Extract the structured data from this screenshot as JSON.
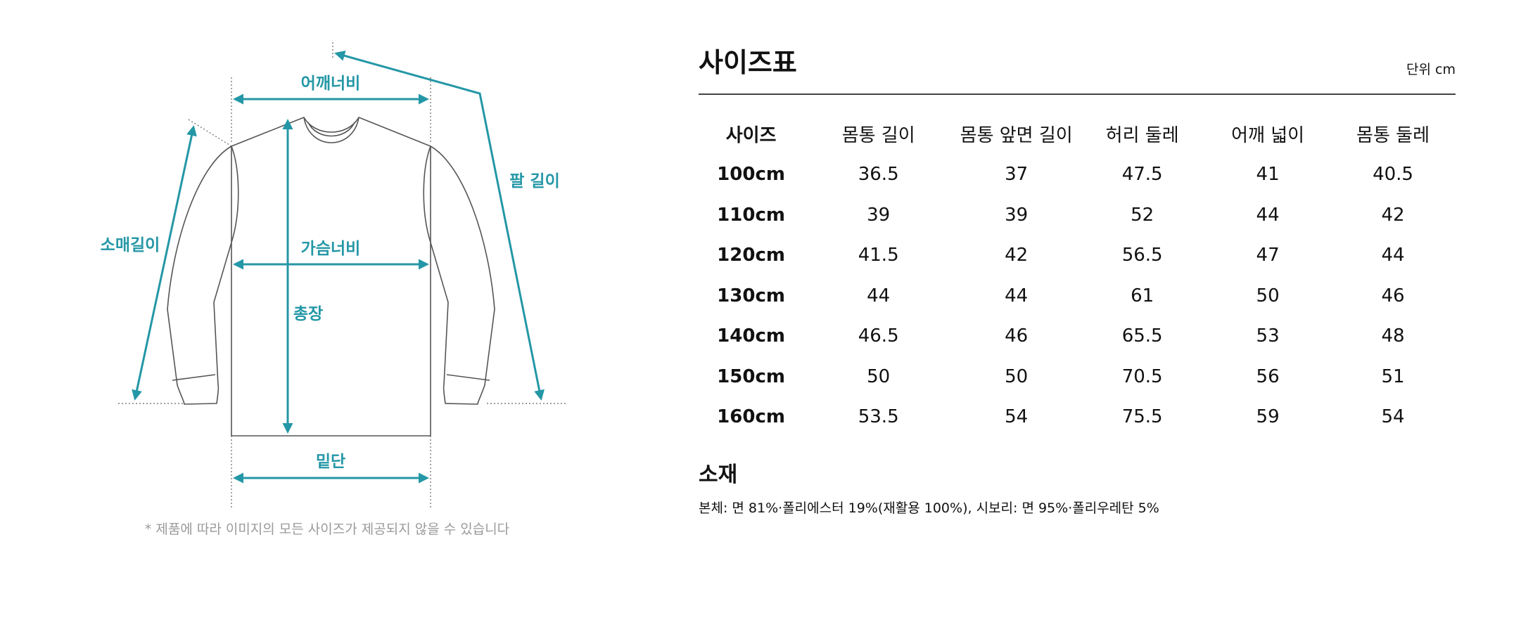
{
  "diagram": {
    "labels": {
      "shoulder_width": "어깨너비",
      "arm_length": "팔 길이",
      "sleeve_length": "소매길이",
      "chest_width": "가슴너비",
      "total_length": "총장",
      "hem": "밑단"
    },
    "note": "* 제품에 따라 이미지의 모든 사이즈가 제공되지 않을 수 있습니다",
    "accent_color": "#2497a6",
    "outline_color": "#555555"
  },
  "size_table": {
    "title": "사이즈표",
    "unit": "단위 cm",
    "headers": [
      "사이즈",
      "몸통 길이",
      "몸통 앞면 길이",
      "허리 둘레",
      "어깨 넓이",
      "몸통 둘레"
    ],
    "rows": [
      [
        "100cm",
        "36.5",
        "37",
        "47.5",
        "41",
        "40.5"
      ],
      [
        "110cm",
        "39",
        "39",
        "52",
        "44",
        "42"
      ],
      [
        "120cm",
        "41.5",
        "42",
        "56.5",
        "47",
        "44"
      ],
      [
        "130cm",
        "44",
        "44",
        "61",
        "50",
        "46"
      ],
      [
        "140cm",
        "46.5",
        "46",
        "65.5",
        "53",
        "48"
      ],
      [
        "150cm",
        "50",
        "50",
        "70.5",
        "56",
        "51"
      ],
      [
        "160cm",
        "53.5",
        "54",
        "75.5",
        "59",
        "54"
      ]
    ]
  },
  "material": {
    "title": "소재",
    "text": "본체: 면 81%·폴리에스터 19%(재활용 100%), 시보리: 면 95%·폴리우레탄 5%"
  }
}
